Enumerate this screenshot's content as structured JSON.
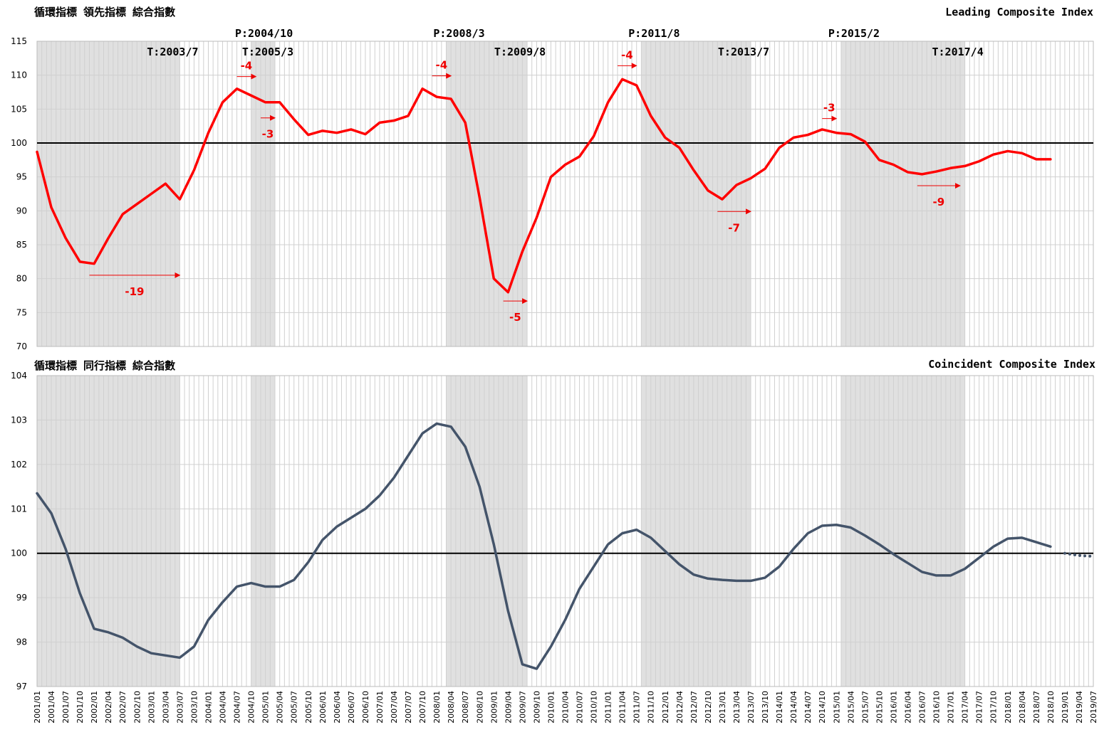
{
  "chart_data": [
    {
      "type": "line",
      "title": "循環指標 領先指標 綜合指數",
      "subtitle": "Leading Composite Index",
      "categories": [
        "2001/01",
        "2001/04",
        "2001/07",
        "2001/10",
        "2002/01",
        "2002/04",
        "2002/07",
        "2002/10",
        "2003/01",
        "2003/04",
        "2003/07",
        "2003/10",
        "2004/01",
        "2004/04",
        "2004/07",
        "2004/10",
        "2005/01",
        "2005/04",
        "2005/07",
        "2005/10",
        "2006/01",
        "2006/04",
        "2006/07",
        "2006/10",
        "2007/01",
        "2007/04",
        "2007/07",
        "2007/10",
        "2008/01",
        "2008/04",
        "2008/07",
        "2008/10",
        "2009/01",
        "2009/04",
        "2009/07",
        "2009/10",
        "2010/01",
        "2010/04",
        "2010/07",
        "2010/10",
        "2011/01",
        "2011/04",
        "2011/07",
        "2011/10",
        "2012/01",
        "2012/04",
        "2012/07",
        "2012/10",
        "2013/01",
        "2013/04",
        "2013/07",
        "2013/10",
        "2014/01",
        "2014/04",
        "2014/07",
        "2014/10",
        "2015/01",
        "2015/04",
        "2015/07",
        "2015/10",
        "2016/01",
        "2016/04",
        "2016/07",
        "2016/10",
        "2017/01",
        "2017/04",
        "2017/07",
        "2017/10",
        "2018/01",
        "2018/04",
        "2018/07",
        "2018/10",
        "2019/01",
        "2019/04",
        "2019/07"
      ],
      "series": [
        {
          "color": "#ff0000",
          "width": 3.5,
          "values": [
            98.7,
            90.5,
            86,
            82.5,
            82.2,
            86,
            89.5,
            91,
            92.5,
            94,
            91.7,
            96,
            101.5,
            106,
            108,
            107,
            106,
            106,
            103.5,
            101.2,
            101.8,
            101.5,
            102,
            101.3,
            103,
            103.3,
            104,
            108,
            106.8,
            106.5,
            103,
            92,
            80,
            78,
            84,
            89,
            95,
            96.8,
            98,
            101,
            106,
            109.4,
            108.5,
            104,
            100.8,
            99.3,
            96,
            93,
            91.7,
            93.8,
            94.8,
            96.2,
            99.3,
            100.8,
            101.2,
            102,
            101.5,
            101.3,
            100.2,
            97.5,
            96.8,
            95.7,
            95.4,
            95.8,
            96.3,
            96.6,
            97.3,
            98.3,
            98.8,
            98.5,
            97.6,
            97.6,
            null,
            null,
            null
          ]
        }
      ],
      "ylim": [
        70,
        115
      ],
      "yticks": [
        70,
        75,
        80,
        85,
        90,
        95,
        100,
        105,
        110,
        115
      ],
      "reference": 100,
      "cycles": [
        {
          "start": "2001/01",
          "end": "2003/07",
          "trough": "T:2003/7"
        },
        {
          "start": "2004/10",
          "end": "2005/03",
          "peak": "P:2004/10",
          "trough": "T:2005/3"
        },
        {
          "start": "2008/03",
          "end": "2009/08",
          "peak": "P:2008/3",
          "trough": "T:2009/8"
        },
        {
          "start": "2011/08",
          "end": "2013/07",
          "peak": "P:2011/8",
          "trough": "T:2013/7"
        },
        {
          "start": "2015/02",
          "end": "2017/04",
          "peak": "P:2015/2",
          "trough": "T:2017/4"
        }
      ],
      "leads": [
        {
          "value": -19,
          "date": "2001/12",
          "level": 80.5
        },
        {
          "value": -4,
          "date": "2004/07",
          "level": 109.8
        },
        {
          "value": -3,
          "date": "2004/12",
          "level": 103.7
        },
        {
          "value": -4,
          "date": "2007/12",
          "level": 109.9
        },
        {
          "value": -5,
          "date": "2009/03",
          "level": 76.7
        },
        {
          "value": -4,
          "date": "2011/03",
          "level": 111.4
        },
        {
          "value": -7,
          "date": "2012/12",
          "level": 89.9
        },
        {
          "value": -3,
          "date": "2014/10",
          "level": 103.6
        },
        {
          "value": -9,
          "date": "2016/06",
          "level": 93.7
        }
      ]
    },
    {
      "type": "line",
      "title": "循環指標 同行指標 綜合指數",
      "subtitle": "Coincident Composite Index",
      "categories": [
        "2001/01",
        "2001/04",
        "2001/07",
        "2001/10",
        "2002/01",
        "2002/04",
        "2002/07",
        "2002/10",
        "2003/01",
        "2003/04",
        "2003/07",
        "2003/10",
        "2004/01",
        "2004/04",
        "2004/07",
        "2004/10",
        "2005/01",
        "2005/04",
        "2005/07",
        "2005/10",
        "2006/01",
        "2006/04",
        "2006/07",
        "2006/10",
        "2007/01",
        "2007/04",
        "2007/07",
        "2007/10",
        "2008/01",
        "2008/04",
        "2008/07",
        "2008/10",
        "2009/01",
        "2009/04",
        "2009/07",
        "2009/10",
        "2010/01",
        "2010/04",
        "2010/07",
        "2010/10",
        "2011/01",
        "2011/04",
        "2011/07",
        "2011/10",
        "2012/01",
        "2012/04",
        "2012/07",
        "2012/10",
        "2013/01",
        "2013/04",
        "2013/07",
        "2013/10",
        "2014/01",
        "2014/04",
        "2014/07",
        "2014/10",
        "2015/01",
        "2015/04",
        "2015/07",
        "2015/10",
        "2016/01",
        "2016/04",
        "2016/07",
        "2016/10",
        "2017/01",
        "2017/04",
        "2017/07",
        "2017/10",
        "2018/01",
        "2018/04",
        "2018/07",
        "2018/10",
        "2019/01",
        "2019/04",
        "2019/07"
      ],
      "series": [
        {
          "color": "#44546a",
          "width": 3.5,
          "values": [
            101.35,
            100.9,
            100.1,
            99.1,
            98.3,
            98.22,
            98.1,
            97.9,
            97.75,
            97.7,
            97.65,
            97.9,
            98.5,
            98.9,
            99.25,
            99.33,
            99.25,
            99.25,
            99.4,
            99.8,
            100.3,
            100.6,
            100.8,
            101,
            101.3,
            101.7,
            102.2,
            102.7,
            102.92,
            102.85,
            102.4,
            101.5,
            100.2,
            98.7,
            97.5,
            97.4,
            97.9,
            98.5,
            99.2,
            99.7,
            100.2,
            100.45,
            100.53,
            100.35,
            100.05,
            99.75,
            99.52,
            99.43,
            99.4,
            99.38,
            99.38,
            99.45,
            99.7,
            100.1,
            100.45,
            100.62,
            100.64,
            100.58,
            100.4,
            100.2,
            99.98,
            99.78,
            99.58,
            99.5,
            99.5,
            99.65,
            99.9,
            100.15,
            100.33,
            100.35,
            100.25,
            100.15,
            null,
            null,
            null
          ]
        },
        {
          "color": "#44546a",
          "width": 4,
          "style": "dotted",
          "values": [
            null,
            null,
            null,
            null,
            null,
            null,
            null,
            null,
            null,
            null,
            null,
            null,
            null,
            null,
            null,
            null,
            null,
            null,
            null,
            null,
            null,
            null,
            null,
            null,
            null,
            null,
            null,
            null,
            null,
            null,
            null,
            null,
            null,
            null,
            null,
            null,
            null,
            null,
            null,
            null,
            null,
            null,
            null,
            null,
            null,
            null,
            null,
            null,
            null,
            null,
            null,
            null,
            null,
            null,
            null,
            null,
            null,
            null,
            null,
            null,
            null,
            null,
            null,
            null,
            null,
            null,
            null,
            null,
            null,
            null,
            null,
            null,
            100.0,
            99.95,
            99.93
          ]
        }
      ],
      "ylim": [
        97,
        104
      ],
      "yticks": [
        97,
        98,
        99,
        100,
        101,
        102,
        103,
        104
      ],
      "reference": 100
    }
  ]
}
